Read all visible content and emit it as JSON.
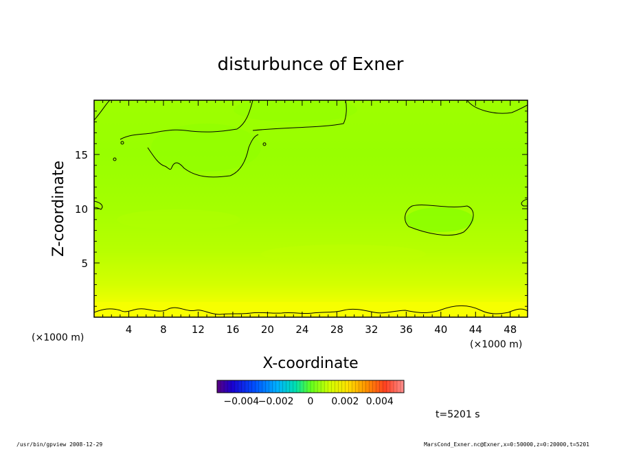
{
  "chart_data": {
    "type": "heatmap",
    "title": "disturbunce of Exner",
    "xlabel": "X-coordinate",
    "ylabel": "Z-coordinate",
    "x_unit": "(×1000 m)",
    "y_unit": "(×1000 m)",
    "xlim": [
      0,
      50
    ],
    "ylim": [
      0,
      20
    ],
    "x_ticks": [
      4,
      8,
      12,
      16,
      20,
      24,
      28,
      32,
      36,
      40,
      44,
      48
    ],
    "y_ticks": [
      5,
      10,
      15
    ],
    "colorbar": {
      "min": -0.0054,
      "max": 0.0054,
      "tick_values": [
        -0.004,
        -0.002,
        0,
        0.002,
        0.004
      ],
      "tick_labels": [
        "−0.004",
        "−0.002",
        "0",
        "0.002",
        "0.004"
      ]
    },
    "field_description_levels": [
      {
        "z": 0.5,
        "value": 0.0018
      },
      {
        "z": 2,
        "value": 0.0013
      },
      {
        "z": 5,
        "value": 0.0007
      },
      {
        "z": 10,
        "value": 0.0003
      },
      {
        "z": 15,
        "value": 0.0001
      },
      {
        "z": 19,
        "value": 0.0002
      }
    ],
    "time_label": "t=5201 s"
  },
  "footer": {
    "left": "/usr/bin/gpview   2008-12-29",
    "right": "MarsCond_Exner.nc@Exner,x=0:50000,z=0:20000,t=5201"
  },
  "colors": {
    "field_upper": "#8cff00",
    "field_low": "#ffff00",
    "contour": "#000000"
  }
}
